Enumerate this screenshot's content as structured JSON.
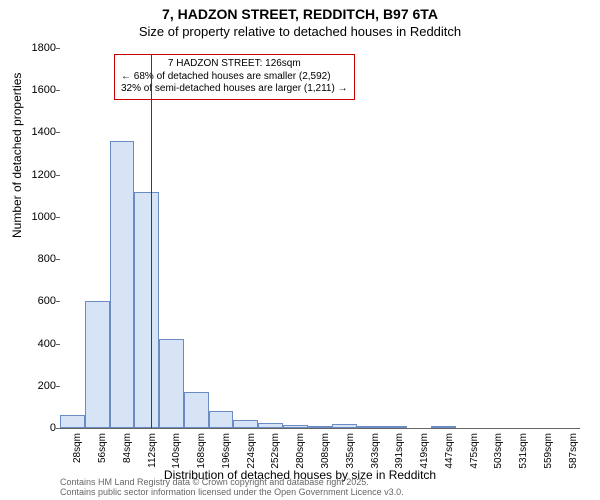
{
  "title_main": "7, HADZON STREET, REDDITCH, B97 6TA",
  "title_sub": "Size of property relative to detached houses in Redditch",
  "y_axis_label": "Number of detached properties",
  "x_axis_label": "Distribution of detached houses by size in Redditch",
  "footer_line1": "Contains HM Land Registry data © Crown copyright and database right 2025.",
  "footer_line2": "Contains public sector information licensed under the Open Government Licence v3.0.",
  "chart": {
    "type": "histogram",
    "ylim": [
      0,
      1800
    ],
    "ytick_step": 200,
    "yticks": [
      0,
      200,
      400,
      600,
      800,
      1000,
      1200,
      1400,
      1600,
      1800
    ],
    "x_categories": [
      "28sqm",
      "56sqm",
      "84sqm",
      "112sqm",
      "140sqm",
      "168sqm",
      "196sqm",
      "224sqm",
      "252sqm",
      "280sqm",
      "308sqm",
      "335sqm",
      "363sqm",
      "391sqm",
      "419sqm",
      "447sqm",
      "475sqm",
      "503sqm",
      "531sqm",
      "559sqm",
      "587sqm"
    ],
    "values": [
      60,
      600,
      1360,
      1120,
      420,
      170,
      80,
      40,
      25,
      15,
      10,
      20,
      5,
      5,
      0,
      5,
      0,
      0,
      0,
      0,
      0
    ],
    "bar_fill": "#d6e4f5",
    "bar_border": "#6a8bc4",
    "background_color": "#ffffff",
    "marker": {
      "color": "#cc0000",
      "x_value": 126,
      "x_min": 28,
      "x_max": 587,
      "line1": "7 HADZON STREET: 126sqm",
      "line2": "← 68% of detached houses are smaller (2,592)",
      "line3": "32% of semi-detached houses are larger (1,211) →"
    },
    "tick_fontsize": 11,
    "label_fontsize": 12,
    "title_fontsize": 14
  }
}
